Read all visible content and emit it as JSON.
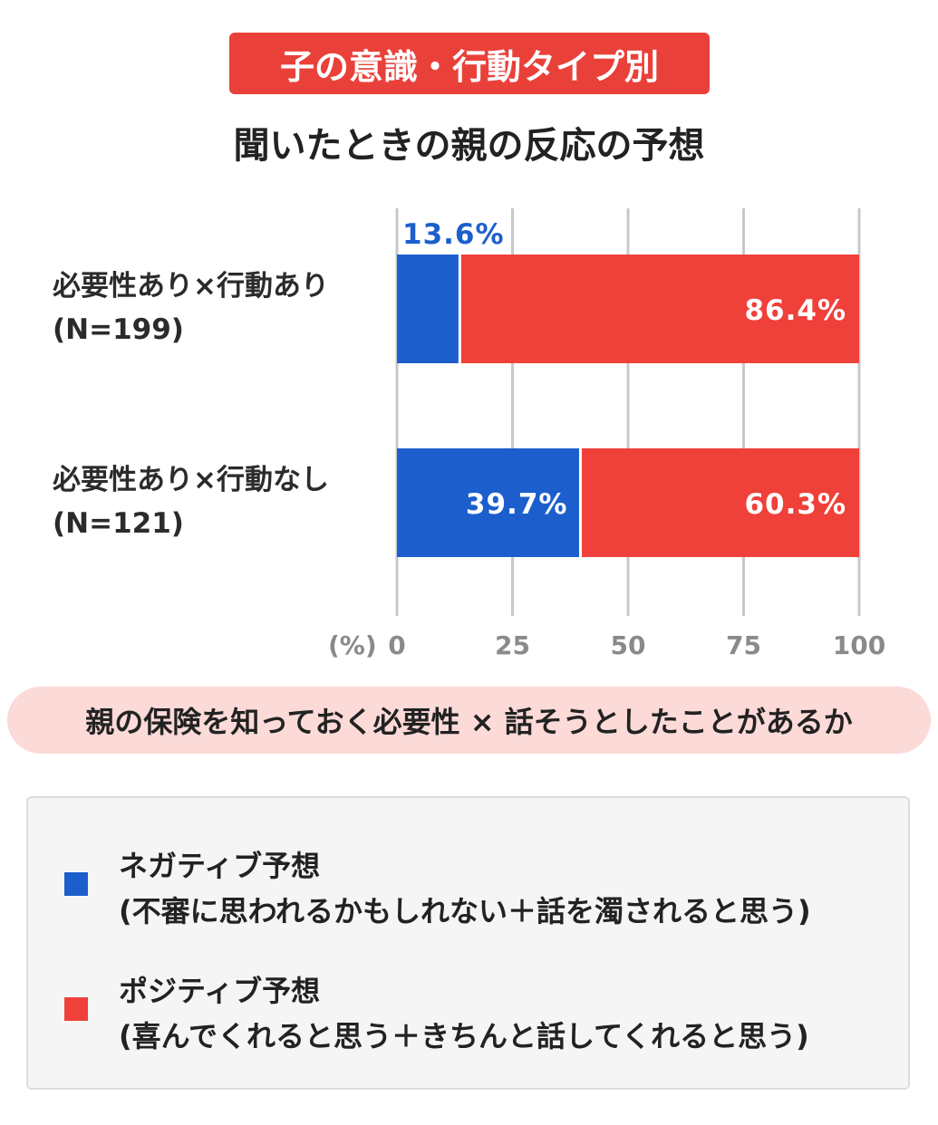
{
  "header": {
    "badge": "子の意識・行動タイプ別",
    "title": "聞いたときの親の反応の予想"
  },
  "chart_data": {
    "type": "bar",
    "orientation": "horizontal",
    "stacked": true,
    "categories": [
      {
        "line1": "必要性あり×行動あり",
        "line2": "(N=199)"
      },
      {
        "line1": "必要性あり×行動なし",
        "line2": "(N=121)"
      }
    ],
    "series": [
      {
        "name": "ネガティブ予想",
        "color": "#1c5fcc",
        "values": [
          13.6,
          39.7
        ],
        "labels": [
          "13.6%",
          "39.7%"
        ]
      },
      {
        "name": "ポジティブ予想",
        "color": "#f0403a",
        "values": [
          86.4,
          60.3
        ],
        "labels": [
          "86.4%",
          "60.3%"
        ]
      }
    ],
    "xlim": [
      0,
      100
    ],
    "xticks": [
      "0",
      "25",
      "50",
      "75",
      "100"
    ],
    "xunit": "(%)",
    "grid": true
  },
  "axis_caption": "親の保険を知っておく必要性 × 話そうとしたことがあるか",
  "legend": {
    "items": [
      {
        "line1": "ネガティブ予想",
        "line2": "(不審に思われるかもしれない＋話を濁されると思う)",
        "color": "#1c5fcc"
      },
      {
        "line1": "ポジティブ予想",
        "line2": "(喜んでくれると思う＋きちんと話してくれると思う)",
        "color": "#f0403a"
      }
    ]
  }
}
